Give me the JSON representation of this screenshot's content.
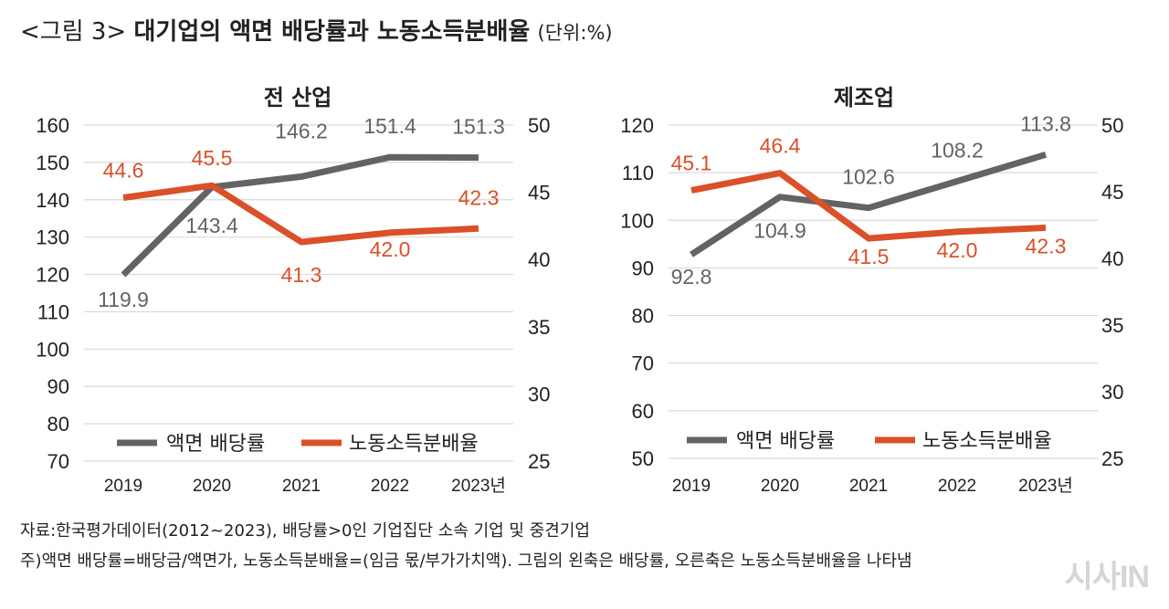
{
  "figure": {
    "title_lead": "<그림 3>",
    "title_main": "대기업의 액면 배당률과 노동소득분배율",
    "title_unit": "(단위:%)"
  },
  "colors": {
    "dividend": "#636363",
    "labor": "#d9502a",
    "grid": "#d9d9d9"
  },
  "chart_data": [
    {
      "type": "line",
      "title": "전 산업",
      "categories": [
        "2019",
        "2020",
        "2021",
        "2022",
        "2023년"
      ],
      "y_left": {
        "min": 70,
        "max": 160,
        "ticks": [
          160,
          150,
          140,
          130,
          120,
          110,
          100,
          90,
          80,
          70
        ]
      },
      "y_right": {
        "min": 25,
        "max": 50,
        "ticks": [
          50,
          45,
          40,
          35,
          30,
          25
        ]
      },
      "series": [
        {
          "name": "액면 배당률",
          "axis": "left",
          "color": "#636363",
          "values": [
            119.9,
            143.4,
            146.2,
            151.4,
            151.3
          ],
          "labels": [
            "119.9",
            "143.4",
            "146.2",
            "151.4",
            "151.3"
          ]
        },
        {
          "name": "노동소득분배율",
          "axis": "right",
          "color": "#d9502a",
          "values": [
            44.6,
            45.5,
            41.3,
            42.0,
            42.3
          ],
          "labels": [
            "44.6",
            "45.5",
            "41.3",
            "42.0",
            "42.3"
          ]
        }
      ],
      "legend": "bottom-left",
      "grid": true
    },
    {
      "type": "line",
      "title": "제조업",
      "categories": [
        "2019",
        "2020",
        "2021",
        "2022",
        "2023년"
      ],
      "y_left": {
        "min": 50,
        "max": 120,
        "ticks": [
          120,
          110,
          100,
          90,
          80,
          70,
          60,
          50
        ]
      },
      "y_right": {
        "min": 25,
        "max": 50,
        "ticks": [
          50,
          45,
          40,
          35,
          30,
          25
        ]
      },
      "series": [
        {
          "name": "액면 배당률",
          "axis": "left",
          "color": "#636363",
          "values": [
            92.8,
            104.9,
            102.6,
            108.2,
            113.8
          ],
          "labels": [
            "92.8",
            "104.9",
            "102.6",
            "108.2",
            "113.8"
          ]
        },
        {
          "name": "노동소득분배율",
          "axis": "right",
          "color": "#d9502a",
          "values": [
            45.1,
            46.4,
            41.5,
            42.0,
            42.3
          ],
          "labels": [
            "45.1",
            "46.4",
            "41.5",
            "42.0",
            "42.3"
          ]
        }
      ],
      "legend": "bottom-left",
      "grid": true
    }
  ],
  "footnotes": {
    "source": "자료:한국평가데이터(2012~2023), 배당률>0인 기업집단 소속 기업 및 중견기업",
    "note": "주)액면 배당률=배당금/액면가, 노동소득분배율=(임금 몫/부가가치액). 그림의 왼축은 배당률, 오른축은 노동소득분배율을 나타냄"
  },
  "watermark": "시사IN"
}
